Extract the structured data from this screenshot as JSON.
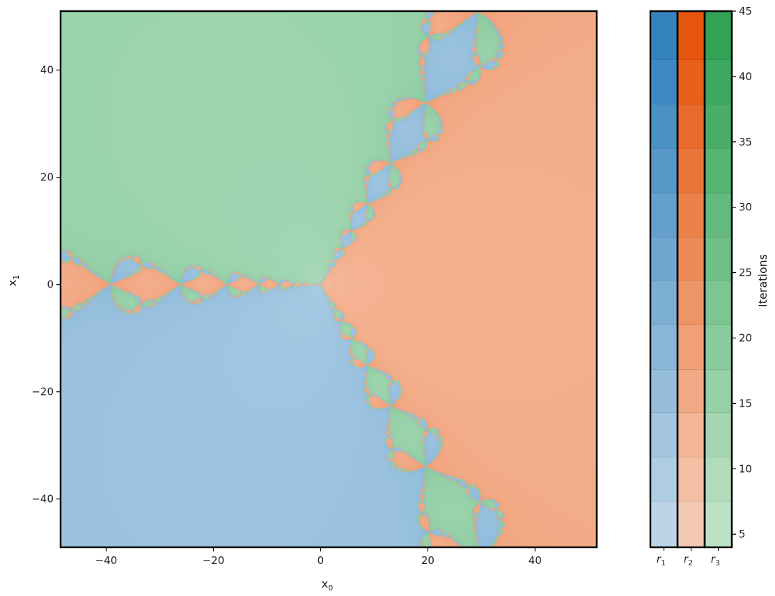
{
  "chart_data": [
    {
      "type": "heatmap",
      "title": "",
      "xlabel": "x",
      "xlabel_sub": "0",
      "ylabel": "x",
      "ylabel_sub": "1",
      "xlim": [
        -48.5,
        51.5
      ],
      "ylim": [
        -49,
        51
      ],
      "xticks": [
        -40,
        -20,
        0,
        20,
        40
      ],
      "yticks": [
        -40,
        -20,
        0,
        20,
        40
      ],
      "xtick_labels": [
        "−40",
        "−20",
        "0",
        "20",
        "40"
      ],
      "ytick_labels": [
        "−40",
        "−20",
        "0",
        "20",
        "40"
      ],
      "grid": false,
      "basins": [
        {
          "name": "r",
          "sub": "1",
          "color": "#3182bd",
          "root": [
            -0.5,
            -0.866
          ]
        },
        {
          "name": "r",
          "sub": "2",
          "color": "#e6550d",
          "root": [
            1.0,
            0.0
          ]
        },
        {
          "name": "r",
          "sub": "3",
          "color": "#31a354",
          "root": [
            -0.5,
            0.866
          ]
        }
      ]
    },
    {
      "type": "heatmap",
      "title": "",
      "colorbar": true,
      "ylabel": "Iterations",
      "ylim": [
        4,
        45
      ],
      "bin_edges": [
        4,
        7.5,
        10.9,
        14.3,
        17.6,
        21.0,
        24.4,
        27.7,
        31.1,
        34.5,
        37.9,
        41.3,
        45
      ],
      "yticks": [
        5,
        10,
        15,
        20,
        25,
        30,
        35,
        40,
        45
      ],
      "ytick_labels": [
        "5",
        "10",
        "15",
        "20",
        "25",
        "30",
        "35",
        "40",
        "45"
      ],
      "columns": [
        {
          "label": "r",
          "sub": "1",
          "light": "#bcd4e6",
          "dark": "#3182bd"
        },
        {
          "label": "r",
          "sub": "2",
          "light": "#f5cab4",
          "dark": "#e6550d"
        },
        {
          "label": "r",
          "sub": "3",
          "light": "#bde2c6",
          "dark": "#31a354"
        }
      ]
    }
  ]
}
